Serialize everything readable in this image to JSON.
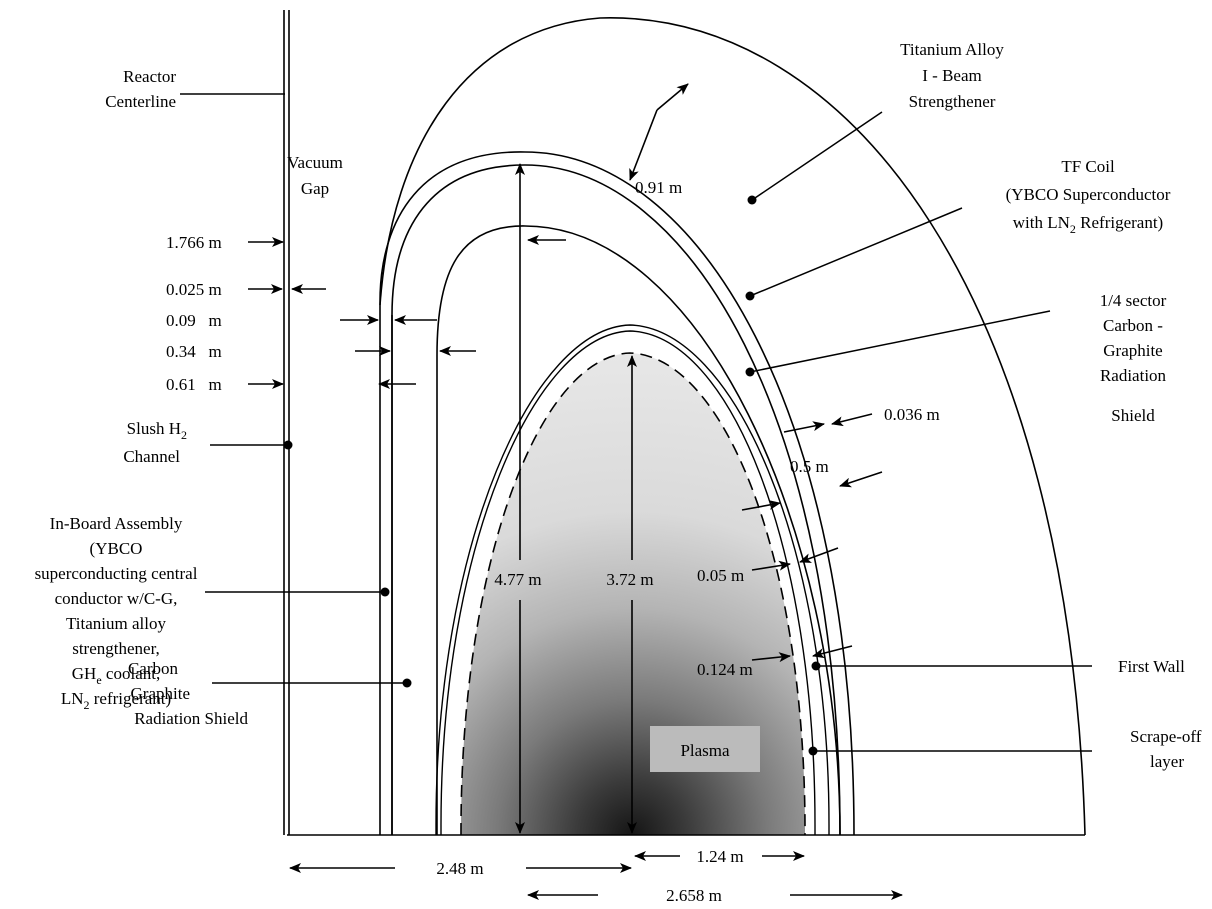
{
  "labels": {
    "reactor_centerline": [
      "Reactor",
      "Centerline"
    ],
    "vacuum_gap": [
      "Vacuum",
      "Gap"
    ],
    "slush": {
      "main": "Slush H",
      "sub": "2",
      "line2": "Channel"
    },
    "inboard": {
      "line1": "In-Board Assembly",
      "line2": "(YBCO",
      "line3": "superconducting central",
      "line4": "conductor w/C-G,",
      "line5": "Titanium alloy",
      "line6": "strengthener,",
      "line7_main": "GH",
      "line7_sub": "e",
      "line7_tail": " coolant,",
      "line8_main": "LN",
      "line8_sub": "2",
      "line8_tail": " refrigerant)"
    },
    "carbon_shield_left": [
      "Carbon",
      "Graphite",
      "Radiation Shield"
    ],
    "titanium": [
      "Titanium Alloy",
      "I - Beam",
      "Strengthener"
    ],
    "tf_coil": {
      "line1": "TF Coil",
      "line2": "(YBCO Superconductor",
      "line3_pre": "with LN",
      "line3_sub": "2",
      "line3_tail": " Refrigerant)"
    },
    "sector_shield": [
      "1/4 sector",
      "Carbon -",
      "Graphite",
      "Radiation",
      "Shield"
    ],
    "first_wall": "First Wall",
    "scrape_off": [
      "Scrape-off",
      "layer"
    ],
    "plasma": "Plasma"
  },
  "dimensions": {
    "d_1766": "1.766 m",
    "d_0025": "0.025 m",
    "d_009": "0.09   m",
    "d_034": "0.34   m",
    "d_061": "0.61   m",
    "d_091": "0.91 m",
    "d_0036": "0.036 m",
    "d_05": "0.5 m",
    "d_005": "0.05 m",
    "d_0124": "0.124 m",
    "d_477": "4.77 m",
    "d_372": "3.72 m",
    "d_248": "2.48 m",
    "d_124": "1.24 m",
    "d_2658": "2.658 m"
  },
  "colors": {
    "plasma_core": "#1c1c1c",
    "plasma_edge": "#ececec",
    "plasma_label_bg": "#bbbbbb",
    "line": "#000000"
  }
}
